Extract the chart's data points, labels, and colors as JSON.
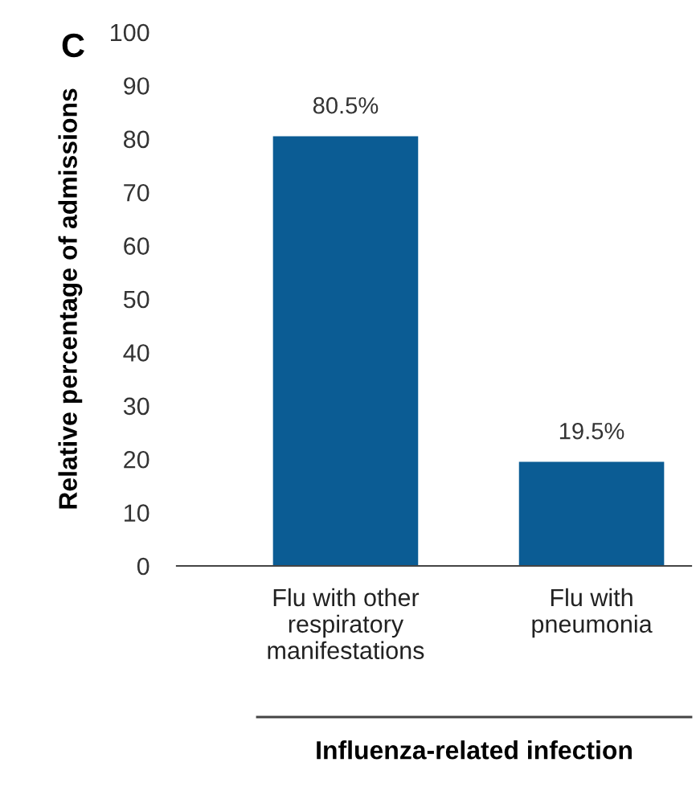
{
  "chart_data": {
    "type": "bar",
    "categories": [
      "Flu with other\nrespiratory\nmanifestations",
      "Flu with\npneumonia"
    ],
    "values": [
      80.5,
      19.5
    ],
    "value_labels": [
      "80.5%",
      "19.5%"
    ],
    "color": "#0b5c94",
    "ylim": [
      0,
      100
    ],
    "yticks": [
      0,
      10,
      20,
      30,
      40,
      50,
      60,
      70,
      80,
      90,
      100
    ],
    "ylabel": "Relative percentage of admissions",
    "xlabel": "Influenza-related infection",
    "annotations": [
      "C"
    ],
    "grid": false,
    "legend": false
  }
}
